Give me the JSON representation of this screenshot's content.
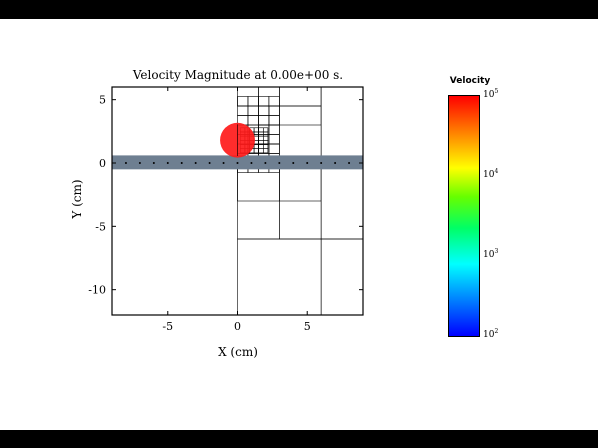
{
  "chart_data": {
    "type": "heatmap",
    "title": "Velocity Magnitude at 0.00e+00 s.",
    "xlabel": "X (cm)",
    "ylabel": "Y (cm)",
    "xlim": [
      -9,
      9
    ],
    "ylim": [
      -12,
      6
    ],
    "x_ticks": [
      -5,
      0,
      5
    ],
    "y_ticks": [
      5,
      0,
      -5,
      -10
    ],
    "grid": false,
    "band": {
      "y_min": -0.5,
      "y_max": 0.6,
      "color": "#6e7f91"
    },
    "sphere": {
      "center_x": 0.0,
      "center_y": 1.8,
      "radius": 1.25,
      "color": "#ff1a1a"
    },
    "colorbar": {
      "title": "Velocity",
      "scale": "log",
      "range": [
        100,
        100000
      ],
      "ticks": [
        {
          "base": "10",
          "exp": "5",
          "value": 100000
        },
        {
          "base": "10",
          "exp": "4",
          "value": 10000
        },
        {
          "base": "10",
          "exp": "3",
          "value": 1000
        },
        {
          "base": "10",
          "exp": "2",
          "value": 100
        }
      ]
    }
  }
}
